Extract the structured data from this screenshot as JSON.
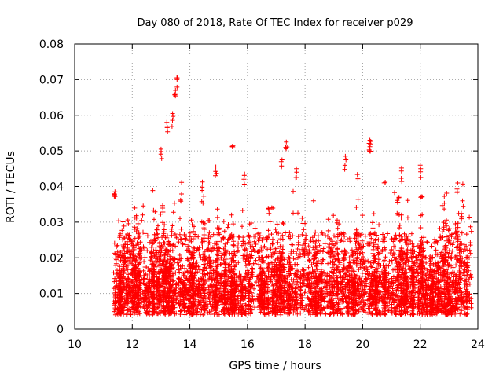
{
  "chart_data": {
    "type": "scatter",
    "title": "Day 080 of 2018, Rate Of TEC Index for receiver p029",
    "xlabel": "GPS time / hours",
    "ylabel": "ROTI / TECUs",
    "xlim": [
      10,
      24
    ],
    "ylim": [
      0,
      0.08
    ],
    "xticks": [
      10,
      12,
      14,
      16,
      18,
      20,
      22,
      24
    ],
    "xtick_labels": [
      "10",
      "12",
      "14",
      "16",
      "18",
      "20",
      "22",
      "24"
    ],
    "yticks": [
      0,
      0.01,
      0.02,
      0.03,
      0.04,
      0.05,
      0.06,
      0.07,
      0.08
    ],
    "ytick_labels": [
      "0",
      "0.01",
      "0.02",
      "0.03",
      "0.04",
      "0.05",
      "0.06",
      "0.07",
      "0.08"
    ],
    "grid": true,
    "marker": "+",
    "color": "#ff0000",
    "series": [
      {
        "name": "ROTI",
        "data_range_x": [
          11.35,
          23.75
        ],
        "typical_y_range": [
          0.004,
          0.03
        ],
        "notable_points": [
          {
            "x": 11.4,
            "y": 0.0385
          },
          {
            "x": 13.0,
            "y": 0.0505
          },
          {
            "x": 13.2,
            "y": 0.058
          },
          {
            "x": 13.4,
            "y": 0.0605
          },
          {
            "x": 13.5,
            "y": 0.067
          },
          {
            "x": 13.55,
            "y": 0.0705
          },
          {
            "x": 14.9,
            "y": 0.0455
          },
          {
            "x": 15.5,
            "y": 0.0515
          },
          {
            "x": 15.9,
            "y": 0.0435
          },
          {
            "x": 17.2,
            "y": 0.0475
          },
          {
            "x": 17.35,
            "y": 0.0525
          },
          {
            "x": 17.7,
            "y": 0.045
          },
          {
            "x": 19.4,
            "y": 0.0485
          },
          {
            "x": 20.25,
            "y": 0.053
          },
          {
            "x": 20.25,
            "y": 0.0512
          },
          {
            "x": 21.35,
            "y": 0.0452
          },
          {
            "x": 22.0,
            "y": 0.046
          },
          {
            "x": 23.3,
            "y": 0.041
          }
        ]
      }
    ]
  }
}
